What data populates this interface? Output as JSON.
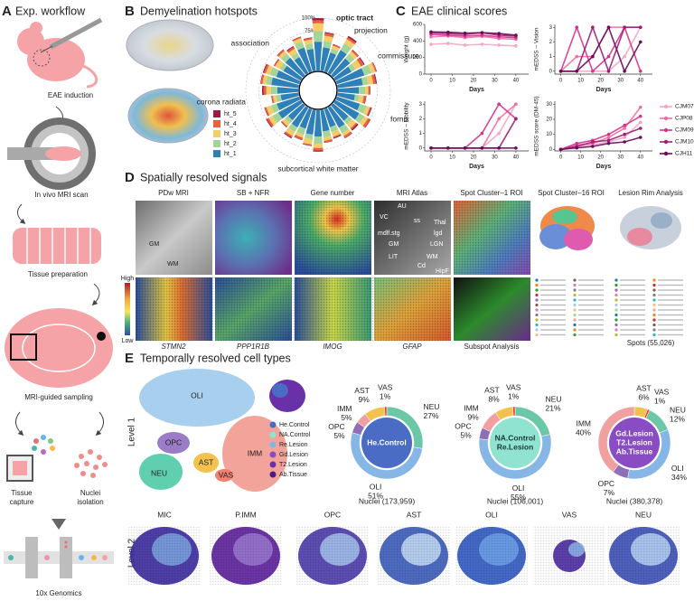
{
  "panels": {
    "A": {
      "letter": "A",
      "title": "Exp. workflow",
      "steps": [
        [
          "EAE induction"
        ],
        [
          "In vivo MRI scan"
        ],
        [
          "Tissue preparation"
        ],
        [
          "MRI-guided sampling"
        ],
        [
          "Tissue",
          "capture"
        ],
        [
          "Nuclei",
          "isolation"
        ],
        [
          "10x Genomics"
        ]
      ]
    },
    "B": {
      "letter": "B",
      "title": "Demyelination hotspots"
    },
    "C": {
      "letter": "C",
      "title": "EAE clinical scores"
    },
    "D": {
      "letter": "D",
      "title": "Spatially resolved signals",
      "columns": [
        "PDw MRI",
        "SB + NFR",
        "Gene number",
        "MRI Atlas",
        "Spot Cluster–1 ROI",
        "Spot Cluster–16 ROI",
        "Lesion Rim Analysis"
      ],
      "bottom_labels": [
        "STMN2",
        "PPP1R1B",
        "IMOG",
        "GFAP",
        "Subspot Analysis",
        "Spots (55,026)"
      ],
      "mri_labels": [
        "GM",
        "WM"
      ],
      "atlas_labels": [
        "AU",
        "VC",
        "ss",
        "Thal",
        "lgd",
        "mdlf.stg",
        "LGN",
        "GM",
        "LIT",
        "WM",
        "Cd",
        "HipF"
      ],
      "colorbar": [
        "High",
        "Low"
      ]
    },
    "E": {
      "letter": "E",
      "title": "Temporally resolved cell types",
      "levels": [
        "Level 1",
        "Level 2"
      ],
      "umap_labels": [
        "OLI",
        "OPC",
        "IMM",
        "NEU",
        "AST",
        "VAS"
      ],
      "conditions": [
        {
          "name": "He.Control",
          "color": "#4a6cc4"
        },
        {
          "name": "NA.Control",
          "color": "#8fe3cf"
        },
        {
          "name": "Re.Lesion",
          "color": "#7fb8e6"
        },
        {
          "name": "Gd.Lesion",
          "color": "#8a4cc2"
        },
        {
          "name": "T2.Lesion",
          "color": "#6a30a8"
        },
        {
          "name": "Ab.Tissue",
          "color": "#4a1d86"
        }
      ],
      "level2": [
        "MIC",
        "P.IMM",
        "OPC",
        "AST",
        "OLI",
        "VAS",
        "NEU"
      ]
    }
  },
  "chart_data": [
    {
      "type": "radial-bar",
      "annotations": [
        "optic tract",
        "association",
        "projection",
        "commissure",
        "corona radiata",
        "fornix",
        "subcortical white matter"
      ],
      "ylim": [
        0,
        100
      ],
      "yticks": [
        {
          "value": 75,
          "label": "75%"
        },
        {
          "value": 100,
          "label": "100%"
        }
      ],
      "series": [
        {
          "name": "ht_1",
          "color": "#2f7fb8",
          "values": [
            55,
            45,
            38,
            50,
            42,
            35,
            55,
            48,
            40,
            33,
            46,
            52,
            38,
            44,
            36,
            41,
            50,
            47,
            39,
            43,
            37,
            49,
            45,
            34,
            40,
            52,
            46,
            38,
            44,
            35,
            48,
            42
          ]
        },
        {
          "name": "ht_2",
          "color": "#a3d59b",
          "values": [
            20,
            12,
            8,
            15,
            11,
            9,
            14,
            10,
            12,
            8,
            13,
            11,
            9,
            12,
            10,
            11,
            14,
            9,
            12,
            10,
            8,
            13,
            11,
            9,
            12,
            10,
            13,
            8,
            11,
            9,
            12,
            10
          ]
        },
        {
          "name": "ht_3",
          "color": "#f4cd6a",
          "values": [
            15,
            10,
            6,
            9,
            7,
            12,
            8,
            10,
            6,
            9,
            7,
            8,
            10,
            6,
            9,
            7,
            8,
            10,
            6,
            9,
            7,
            8,
            10,
            6,
            9,
            7,
            8,
            10,
            6,
            9,
            7,
            8
          ]
        },
        {
          "name": "ht_4",
          "color": "#e8603c",
          "values": [
            6,
            5,
            2,
            4,
            3,
            6,
            2,
            5,
            3,
            4,
            2,
            5,
            3,
            4,
            2,
            3,
            5,
            2,
            4,
            3,
            2,
            4,
            3,
            2,
            5,
            3,
            4,
            2,
            3,
            4,
            2,
            3
          ]
        },
        {
          "name": "ht_5",
          "color": "#9e1b46",
          "values": [
            4,
            2,
            1,
            3,
            1,
            2,
            1,
            2,
            1,
            1,
            2,
            1,
            3,
            1,
            2,
            1,
            2,
            1,
            1,
            2,
            1,
            2,
            1,
            1,
            3,
            1,
            2,
            1,
            1,
            2,
            1,
            1
          ]
        }
      ]
    },
    {
      "type": "line",
      "x": [
        0,
        8,
        16,
        24,
        32,
        40
      ],
      "xlim": [
        -3,
        46
      ],
      "xticks": [
        0,
        10,
        20,
        30,
        40
      ],
      "xlabel": "Days",
      "legend": [
        {
          "name": "CJM07",
          "color": "#f4a6c4"
        },
        {
          "name": "CJP08",
          "color": "#ec6fa8"
        },
        {
          "name": "CJM09",
          "color": "#d6338a"
        },
        {
          "name": "CJM10",
          "color": "#9c1f77"
        },
        {
          "name": "CJH11",
          "color": "#6a0c5a"
        }
      ],
      "subplots": [
        {
          "ylabel": "Weight (g)",
          "ylim": [
            0,
            600
          ],
          "yticks": [
            0,
            200,
            400,
            600
          ],
          "series": [
            {
              "values": [
                360,
                370,
                350,
                360,
                350,
                340
              ]
            },
            {
              "values": [
                450,
                460,
                440,
                455,
                430,
                420
              ]
            },
            {
              "values": [
                480,
                470,
                460,
                470,
                450,
                440
              ]
            },
            {
              "values": [
                500,
                490,
                480,
                500,
                470,
                460
              ]
            },
            {
              "values": [
                510,
                505,
                495,
                500,
                490,
                470
              ]
            }
          ]
        },
        {
          "ylabel": "mEDSS – Vision",
          "ylim": [
            -0.2,
            3.2
          ],
          "yticks": [
            0,
            1,
            2,
            3
          ],
          "series": [
            {
              "values": [
                0,
                0,
                0,
                0,
                1,
                3
              ]
            },
            {
              "values": [
                0,
                1,
                1,
                3,
                3,
                3
              ]
            },
            {
              "values": [
                0,
                3,
                0,
                1,
                3,
                0
              ]
            },
            {
              "values": [
                0,
                0,
                3,
                0,
                3,
                3
              ]
            },
            {
              "values": [
                0,
                0,
                1,
                3,
                0,
                2
              ]
            }
          ]
        },
        {
          "ylabel": "mEDSS – Mobility",
          "ylim": [
            -0.2,
            3.2
          ],
          "yticks": [
            0,
            1,
            2,
            3
          ],
          "series": [
            {
              "values": [
                0,
                0,
                0,
                0,
                1,
                3
              ]
            },
            {
              "values": [
                0,
                0,
                0,
                0,
                2,
                3
              ]
            },
            {
              "values": [
                0,
                0,
                0,
                1,
                3,
                2
              ]
            },
            {
              "values": [
                0,
                0,
                0,
                0,
                0,
                2
              ]
            },
            {
              "values": [
                0,
                0,
                0,
                0,
                0,
                0
              ]
            }
          ]
        },
        {
          "ylabel": "mEDSS score (DM-45)",
          "ylim": [
            -1,
            32
          ],
          "yticks": [
            0,
            10,
            20,
            30
          ],
          "series": [
            {
              "values": [
                0,
                2,
                3,
                5,
                8,
                18
              ]
            },
            {
              "values": [
                0,
                3,
                4,
                8,
                14,
                28
              ]
            },
            {
              "values": [
                0,
                4,
                6,
                10,
                16,
                22
              ]
            },
            {
              "values": [
                0,
                2,
                5,
                6,
                10,
                14
              ]
            },
            {
              "values": [
                0,
                1,
                2,
                4,
                5,
                8
              ]
            }
          ]
        }
      ]
    },
    {
      "type": "pie",
      "center_label": [
        "He.Control"
      ],
      "categories": [
        "NEU",
        "OLI",
        "OPC",
        "IMM",
        "AST",
        "VAS"
      ],
      "values": [
        27,
        51,
        5,
        5,
        9,
        1
      ],
      "value_labels": [
        "27%",
        "51%",
        "5%",
        "5%",
        "9%",
        "1%"
      ],
      "colors": [
        "#6cc7a6",
        "#86b6e6",
        "#8e6fb5",
        "#f0a0a0",
        "#f2c14e",
        "#e0453a"
      ],
      "caption": "Nuclei (173,959)"
    },
    {
      "type": "pie",
      "center_label": [
        "NA.Control",
        "Re.Lesion"
      ],
      "categories": [
        "NEU",
        "OLI",
        "OPC",
        "IMM",
        "AST",
        "VAS"
      ],
      "values": [
        21,
        55,
        5,
        9,
        8,
        1
      ],
      "value_labels": [
        "21%",
        "55%",
        "5%",
        "9%",
        "8%",
        "1%"
      ],
      "colors": [
        "#6cc7a6",
        "#86b6e6",
        "#8e6fb5",
        "#f0a0a0",
        "#f2c14e",
        "#e0453a"
      ],
      "caption": "Nuclei (106,001)"
    },
    {
      "type": "pie",
      "center_label": [
        "Gd.Lesion",
        "T2.Lesion",
        "Ab.Tissue"
      ],
      "categories": [
        "AST",
        "VAS",
        "NEU",
        "OLI",
        "OPC",
        "IMM"
      ],
      "values": [
        6,
        1,
        12,
        34,
        7,
        40
      ],
      "value_labels": [
        "6%",
        "1%",
        "12%",
        "34%",
        "7%",
        "40%"
      ],
      "colors": [
        "#f2c14e",
        "#e0453a",
        "#6cc7a6",
        "#86b6e6",
        "#8e6fb5",
        "#f0a0a0"
      ],
      "caption": "Nuclei (380,378)"
    }
  ]
}
